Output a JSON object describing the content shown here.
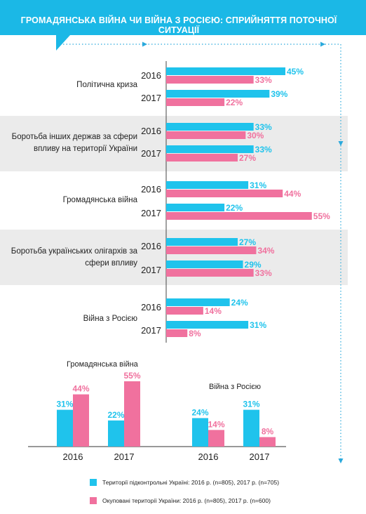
{
  "title": "ГРОМАДЯНСЬКА ВІЙНА ЧИ ВІЙНА З РОСІЄЮ: СПРИЙНЯТТЯ ПОТОЧНОЇ СИТУАЦІЇ",
  "colors": {
    "banner": "#1bb8e6",
    "controlled": "#1fc3ec",
    "occupied": "#f0719e",
    "band": "#ebebeb",
    "dots": "#2aa9dc"
  },
  "chart_data": [
    {
      "type": "bar",
      "orientation": "horizontal",
      "categories": [
        "Політична криза",
        "Боротьба інших держав за сфери впливу на території України",
        "Громадянська війна",
        "Боротьба українських олігархів за сфери впливу",
        "Війна з Росією"
      ],
      "years": [
        "2016",
        "2017"
      ],
      "series": [
        {
          "name": "Території підконтрольні Україні:  2016 р. (n=805), 2017 р. (n=705)",
          "values": [
            [
              45,
              39
            ],
            [
              33,
              33
            ],
            [
              31,
              22
            ],
            [
              27,
              29
            ],
            [
              24,
              31
            ]
          ]
        },
        {
          "name": "Окуповані території України: 2016 р. (n=805), 2017 р. (n=600)",
          "values": [
            [
              33,
              22
            ],
            [
              30,
              27
            ],
            [
              44,
              55
            ],
            [
              34,
              33
            ],
            [
              14,
              8
            ]
          ]
        }
      ],
      "unit": "%"
    },
    {
      "type": "bar",
      "title": "Громадянська війна",
      "categories": [
        "2016",
        "2017"
      ],
      "series": [
        {
          "name": "Території підконтрольні Україні:  2016 р. (n=805), 2017 р. (n=705)",
          "values": [
            31,
            22
          ]
        },
        {
          "name": "Окуповані території України: 2016 р. (n=805), 2017 р. (n=600)",
          "values": [
            44,
            55
          ]
        }
      ],
      "unit": "%"
    },
    {
      "type": "bar",
      "title": "Війна з Росією",
      "categories": [
        "2016",
        "2017"
      ],
      "series": [
        {
          "name": "Території підконтрольні Україні:  2016 р. (n=805), 2017 р. (n=705)",
          "values": [
            24,
            31
          ]
        },
        {
          "name": "Окуповані території України: 2016 р. (n=805), 2017 р. (n=600)",
          "values": [
            14,
            8
          ]
        }
      ],
      "unit": "%"
    }
  ],
  "legend": {
    "controlled": "Території підконтрольні Україні:  2016 р. (n=805), 2017 р. (n=705)",
    "occupied": "Окуповані території України: 2016 р. (n=805), 2017 р. (n=600)"
  }
}
